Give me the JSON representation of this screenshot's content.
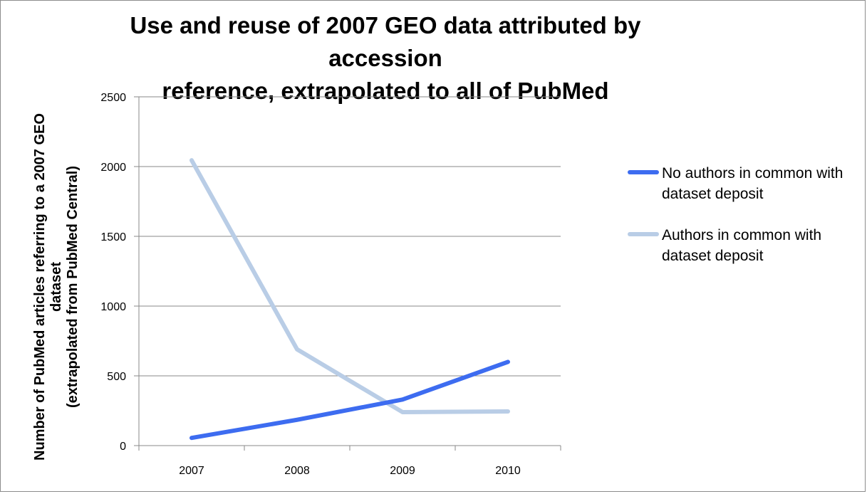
{
  "chart_data": {
    "type": "line",
    "title_lines": [
      "Use and reuse of 2007 GEO data attributed by accession",
      "reference, extrapolated to all of PubMed"
    ],
    "ylabel_lines": [
      "Number of PubMed articles referring to a 2007 GEO",
      "dataset",
      "(extrapolated from PubMed Central)"
    ],
    "xlabel": "",
    "categories": [
      "2007",
      "2008",
      "2009",
      "2010"
    ],
    "ylim": [
      0,
      2500
    ],
    "yticks": [
      0,
      500,
      1000,
      1500,
      2000,
      2500
    ],
    "grid": true,
    "legend_position": "right",
    "series": [
      {
        "name": "No authors in common with dataset deposit",
        "values": [
          55,
          185,
          330,
          600
        ],
        "color": "#3d6cf0"
      },
      {
        "name": "Authors in common with dataset deposit",
        "values": [
          2045,
          690,
          240,
          245
        ],
        "color": "#b9cde6"
      }
    ]
  }
}
